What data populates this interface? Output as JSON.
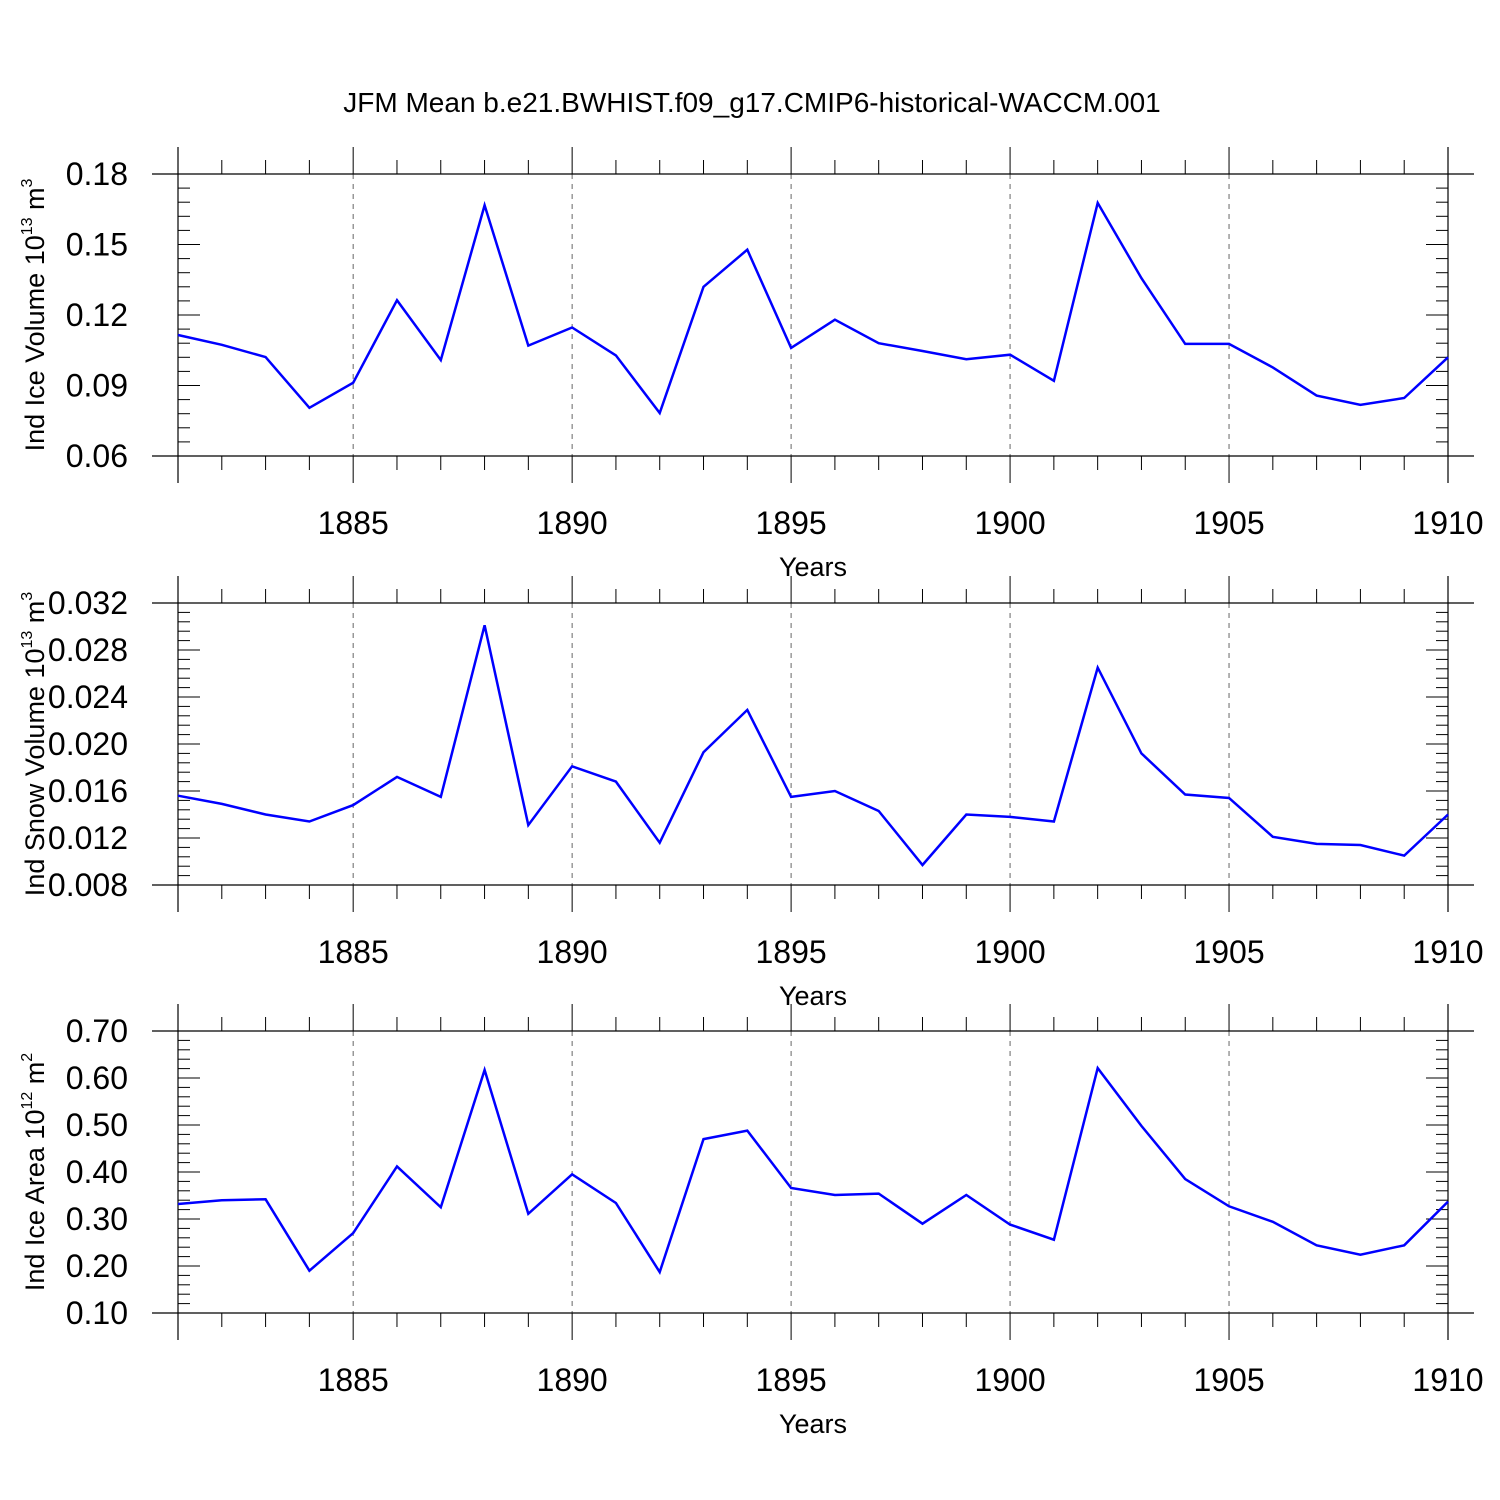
{
  "figure": {
    "title": "JFM Mean b.e21.BWHIST.f09_g17.CMIP6-historical-WACCM.001",
    "line_color": "#0000ff",
    "grid_color": "#666666"
  },
  "chart_data": [
    {
      "type": "line",
      "title": "JFM Mean b.e21.BWHIST.f09_g17.CMIP6-historical-WACCM.001",
      "xlabel": "Years",
      "ylabel": {
        "prefix": "Ind Ice Volume 10",
        "exp": "13",
        "unit": " m",
        "unit_exp": "3"
      },
      "xlim": [
        1881,
        1910
      ],
      "ylim": [
        0.06,
        0.18
      ],
      "xticks": [
        1885,
        1890,
        1895,
        1900,
        1905,
        1910
      ],
      "xtick_labels": [
        "1885",
        "1890",
        "1895",
        "1900",
        "1905",
        "1910"
      ],
      "yticks": [
        0.06,
        0.09,
        0.12,
        0.15,
        0.18
      ],
      "ytick_labels": [
        "0.06",
        "0.09",
        "0.12",
        "0.15",
        "0.18"
      ],
      "y_minor_step": 0.006,
      "x_minor_step": 1,
      "grid": "dashed vertical at major x ticks",
      "x": [
        1881,
        1882,
        1883,
        1884,
        1885,
        1886,
        1887,
        1888,
        1889,
        1890,
        1891,
        1892,
        1893,
        1894,
        1895,
        1896,
        1897,
        1898,
        1899,
        1900,
        1901,
        1902,
        1903,
        1904,
        1905,
        1906,
        1907,
        1908,
        1909,
        1910
      ],
      "series": [
        {
          "name": "Ind Ice Volume",
          "values": [
            0.1115,
            0.1073,
            0.1021,
            0.0805,
            0.0912,
            0.1263,
            0.1008,
            0.1667,
            0.107,
            0.1147,
            0.1028,
            0.0783,
            0.132,
            0.1478,
            0.106,
            0.118,
            0.108,
            0.1047,
            0.1012,
            0.1031,
            0.092,
            0.1677,
            0.1357,
            0.1077,
            0.1077,
            0.0977,
            0.0857,
            0.0818,
            0.0847,
            0.102
          ]
        }
      ]
    },
    {
      "type": "line",
      "xlabel": "Years",
      "ylabel": {
        "prefix": "Ind Snow Volume 10",
        "exp": "13",
        "unit": " m",
        "unit_exp": "3"
      },
      "xlim": [
        1881,
        1910
      ],
      "ylim": [
        0.008,
        0.032
      ],
      "xticks": [
        1885,
        1890,
        1895,
        1900,
        1905,
        1910
      ],
      "xtick_labels": [
        "1885",
        "1890",
        "1895",
        "1900",
        "1905",
        "1910"
      ],
      "yticks": [
        0.008,
        0.012,
        0.016,
        0.02,
        0.024,
        0.028,
        0.032
      ],
      "ytick_labels": [
        "0.008",
        "0.012",
        "0.016",
        "0.020",
        "0.024",
        "0.028",
        "0.032"
      ],
      "y_minor_step": 0.0008,
      "x_minor_step": 1,
      "grid": "dashed vertical at major x ticks",
      "x": [
        1881,
        1882,
        1883,
        1884,
        1885,
        1886,
        1887,
        1888,
        1889,
        1890,
        1891,
        1892,
        1893,
        1894,
        1895,
        1896,
        1897,
        1898,
        1899,
        1900,
        1901,
        1902,
        1903,
        1904,
        1905,
        1906,
        1907,
        1908,
        1909,
        1910
      ],
      "series": [
        {
          "name": "Ind Snow Volume",
          "values": [
            0.0156,
            0.0149,
            0.014,
            0.0134,
            0.0148,
            0.0172,
            0.0155,
            0.0301,
            0.0131,
            0.0181,
            0.0168,
            0.0116,
            0.0193,
            0.0229,
            0.0155,
            0.016,
            0.0143,
            0.0097,
            0.014,
            0.0138,
            0.0134,
            0.0265,
            0.0192,
            0.0157,
            0.0154,
            0.0121,
            0.0115,
            0.0114,
            0.0105,
            0.014
          ]
        }
      ]
    },
    {
      "type": "line",
      "xlabel": "Years",
      "ylabel": {
        "prefix": "Ind Ice Area 10",
        "exp": "12",
        "unit": " m",
        "unit_exp": "2"
      },
      "xlim": [
        1881,
        1910
      ],
      "ylim": [
        0.1,
        0.7
      ],
      "xticks": [
        1885,
        1890,
        1895,
        1900,
        1905,
        1910
      ],
      "xtick_labels": [
        "1885",
        "1890",
        "1895",
        "1900",
        "1905",
        "1910"
      ],
      "yticks": [
        0.1,
        0.2,
        0.3,
        0.4,
        0.5,
        0.6,
        0.7
      ],
      "ytick_labels": [
        "0.10",
        "0.20",
        "0.30",
        "0.40",
        "0.50",
        "0.60",
        "0.70"
      ],
      "y_minor_step": 0.02,
      "x_minor_step": 1,
      "grid": "dashed vertical at major x ticks",
      "x": [
        1881,
        1882,
        1883,
        1884,
        1885,
        1886,
        1887,
        1888,
        1889,
        1890,
        1891,
        1892,
        1893,
        1894,
        1895,
        1896,
        1897,
        1898,
        1899,
        1900,
        1901,
        1902,
        1903,
        1904,
        1905,
        1906,
        1907,
        1908,
        1909,
        1910
      ],
      "series": [
        {
          "name": "Ind Ice Area",
          "values": [
            0.332,
            0.34,
            0.342,
            0.19,
            0.27,
            0.412,
            0.325,
            0.617,
            0.311,
            0.395,
            0.334,
            0.187,
            0.47,
            0.488,
            0.366,
            0.351,
            0.354,
            0.29,
            0.351,
            0.288,
            0.256,
            0.621,
            0.498,
            0.385,
            0.327,
            0.294,
            0.244,
            0.224,
            0.244,
            0.337
          ]
        }
      ]
    }
  ]
}
